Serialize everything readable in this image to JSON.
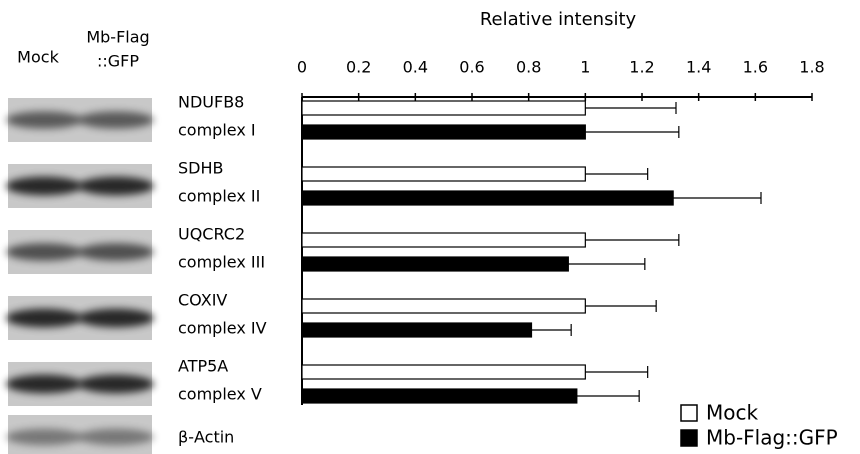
{
  "blots": {
    "lane_headers": [
      "Mock",
      "Mb-Flag",
      "::GFP"
    ],
    "loading_control": "β-Actin"
  },
  "chart_data": {
    "type": "bar",
    "orientation": "horizontal",
    "title": "Relative intensity",
    "proteins": [
      "NDUFB8",
      "SDHB",
      "UQCRC2",
      "COXIV",
      "ATP5A"
    ],
    "categories": [
      "complex I",
      "complex II",
      "complex III",
      "complex IV",
      "complex V"
    ],
    "series": [
      {
        "name": "Mock",
        "color": "#ffffff",
        "values": [
          1,
          1,
          1,
          1,
          1
        ],
        "errors": [
          0.32,
          0.22,
          0.33,
          0.25,
          0.22
        ]
      },
      {
        "name": "Mb-Flag::GFP",
        "color": "#000000",
        "values": [
          1,
          1.31,
          0.94,
          0.81,
          0.97
        ],
        "errors": [
          0.33,
          0.31,
          0.27,
          0.14,
          0.22
        ]
      }
    ],
    "xlim": [
      0,
      1.8
    ],
    "xticks": [
      0,
      0.2,
      0.4,
      0.6,
      0.8,
      1,
      1.2,
      1.4,
      1.6,
      1.8
    ],
    "legend": "bottom-right"
  }
}
